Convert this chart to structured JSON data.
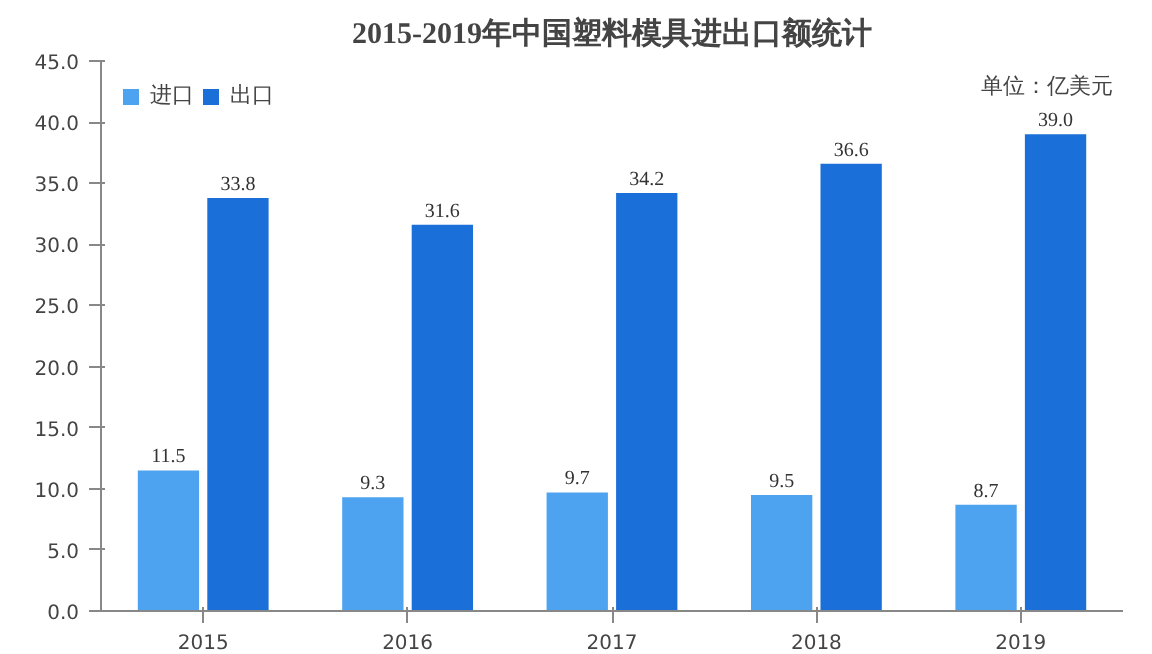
{
  "chart_data": {
    "type": "bar",
    "title": "2015-2019年中国塑料模具进出口额统计",
    "categories": [
      "2015",
      "2016",
      "2017",
      "2018",
      "2019"
    ],
    "series": [
      {
        "name": "进口",
        "color": "#4da3f0",
        "values": [
          11.5,
          9.3,
          9.7,
          9.5,
          8.7
        ],
        "value_labels": [
          "11.5",
          "9.3",
          "9.7",
          "9.5",
          "8.7"
        ]
      },
      {
        "name": "出口",
        "color": "#1b6fd8",
        "values": [
          33.8,
          31.6,
          34.2,
          36.6,
          39.0
        ],
        "value_labels": [
          "33.8",
          "31.6",
          "34.2",
          "36.6",
          "39.0"
        ]
      }
    ],
    "ylim": [
      0,
      45
    ],
    "yticks": [
      {
        "value": 0,
        "label": "0.0"
      },
      {
        "value": 5,
        "label": "5.0"
      },
      {
        "value": 10,
        "label": "10.0"
      },
      {
        "value": 15,
        "label": "15.0"
      },
      {
        "value": 20,
        "label": "20.0"
      },
      {
        "value": 25,
        "label": "25.0"
      },
      {
        "value": 30,
        "label": "30.0"
      },
      {
        "value": 35,
        "label": "35.0"
      },
      {
        "value": 40,
        "label": "40.0"
      },
      {
        "value": 45,
        "label": "45.0"
      }
    ],
    "legend": "top left",
    "grid": false,
    "annotations": [
      "单位：亿美元"
    ]
  }
}
